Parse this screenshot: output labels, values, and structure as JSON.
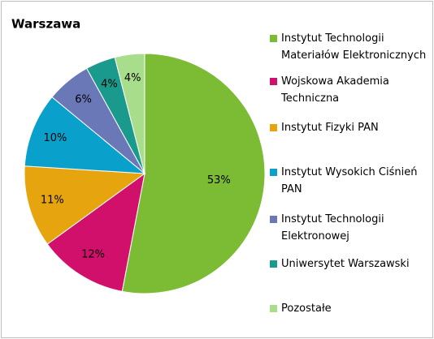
{
  "chart_data": {
    "type": "pie",
    "title": "Warszawa",
    "categories": [
      "Instytut Technologii Materiałów Elektronicznych",
      "Wojskowa Akademia Techniczna",
      "Instytut Fizyki PAN",
      "Instytut Wysokich Ciśnień PAN",
      "Instytut Technologii Elektronowej",
      "Uniwersytet Warszawski",
      "Pozostałe"
    ],
    "values": [
      53,
      12,
      11,
      10,
      6,
      4,
      4
    ],
    "value_labels": [
      "53%",
      "12%",
      "11%",
      "10%",
      "6%",
      "4%",
      "4%"
    ],
    "colors": [
      "#7cbb34",
      "#d0106a",
      "#e6a50f",
      "#0aa0cc",
      "#6a78b8",
      "#1a9a8c",
      "#a8dd8c"
    ],
    "legend": "right"
  }
}
